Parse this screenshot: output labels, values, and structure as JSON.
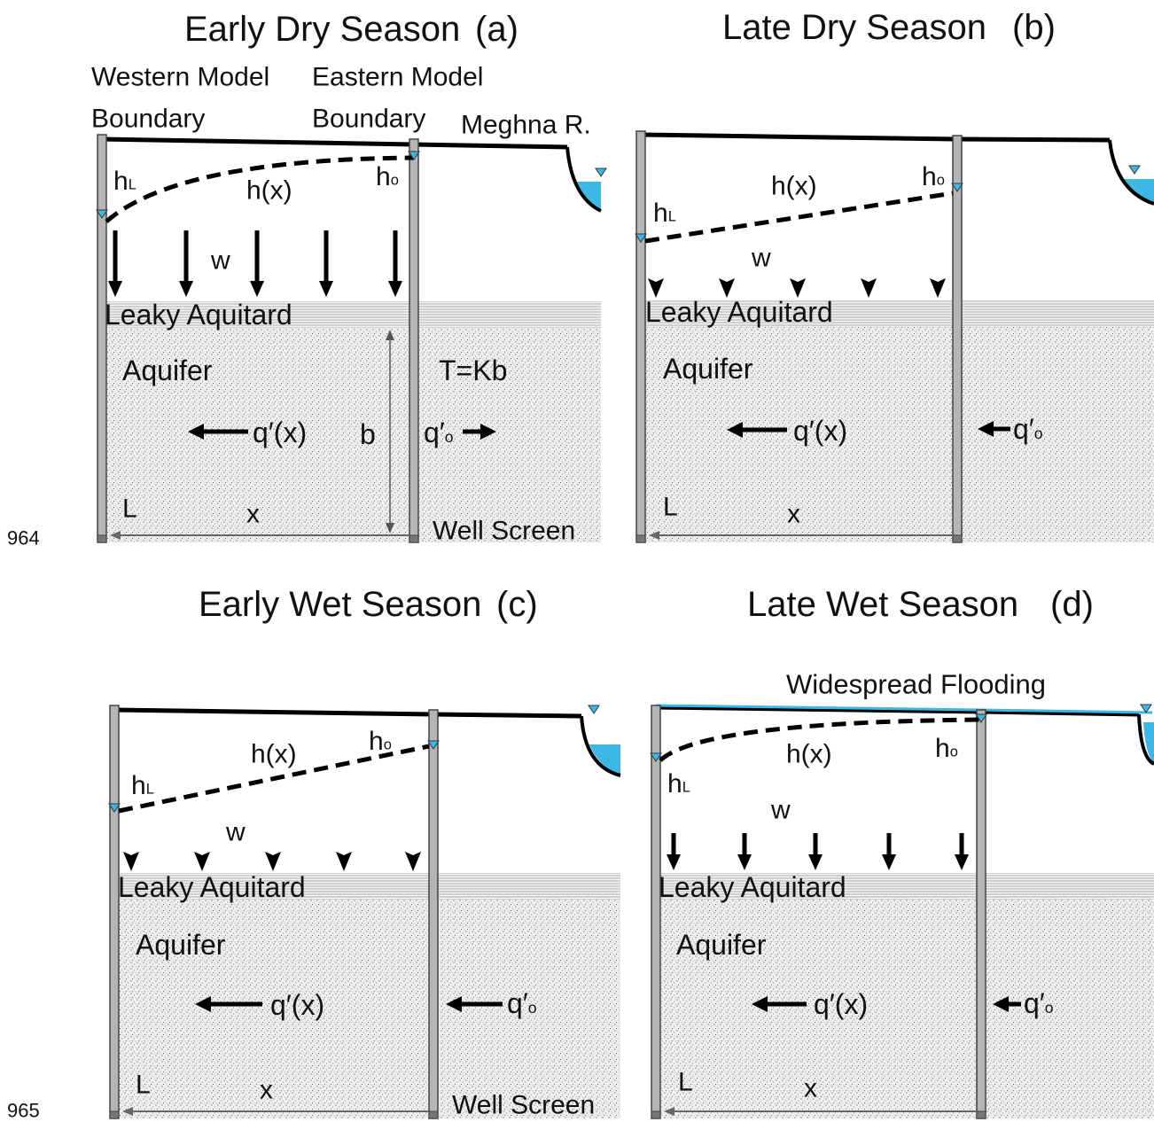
{
  "line_numbers": [
    "964",
    "965"
  ],
  "panels": [
    {
      "title": "Early Dry Season",
      "tag": "(a)",
      "western_boundary": [
        "Western Model",
        "Boundary"
      ],
      "eastern_boundary": [
        "Eastern Model",
        "Boundary"
      ],
      "river": "Meghna R.",
      "h_left": {
        "base": "h",
        "sub": "L"
      },
      "h_right": {
        "base": "h",
        "sub": "o"
      },
      "head": "h(x)",
      "recharge": "w",
      "aquitard": "Leaky Aquitard",
      "aquifer": "Aquifer",
      "flow": "q′(x)",
      "outflow": {
        "base": "q′",
        "sub": "o"
      },
      "transmissivity": "T=Kb",
      "thickness": "b",
      "length": "L",
      "distance": "x",
      "screen": "Well Screen"
    },
    {
      "title": "Late Dry Season",
      "tag": "(b)",
      "h_left": {
        "base": "h",
        "sub": "L"
      },
      "h_right": {
        "base": "h",
        "sub": "o"
      },
      "head": "h(x)",
      "recharge": "w",
      "aquitard": "Leaky Aquitard",
      "aquifer": "Aquifer",
      "flow": "q′(x)",
      "outflow": {
        "base": "q′",
        "sub": "o"
      },
      "length": "L",
      "distance": "x"
    },
    {
      "title": "Early Wet Season",
      "tag": "(c)",
      "h_left": {
        "base": "h",
        "sub": "L"
      },
      "h_right": {
        "base": "h",
        "sub": "o"
      },
      "head": "h(x)",
      "recharge": "w",
      "aquitard": "Leaky Aquitard",
      "aquifer": "Aquifer",
      "flow": "q′(x)",
      "outflow": {
        "base": "q′",
        "sub": "o"
      },
      "length": "L",
      "distance": "x",
      "screen": "Well Screen"
    },
    {
      "title": "Late Wet Season",
      "tag": "(d)",
      "flooding": "Widespread Flooding",
      "h_left": {
        "base": "h",
        "sub": "L"
      },
      "h_right": {
        "base": "h",
        "sub": "o"
      },
      "head": "h(x)",
      "recharge": "w",
      "aquitard": "Leaky Aquitard",
      "aquifer": "Aquifer",
      "flow": "q′(x)",
      "outflow": {
        "base": "q′",
        "sub": "o"
      },
      "length": "L",
      "distance": "x"
    }
  ]
}
